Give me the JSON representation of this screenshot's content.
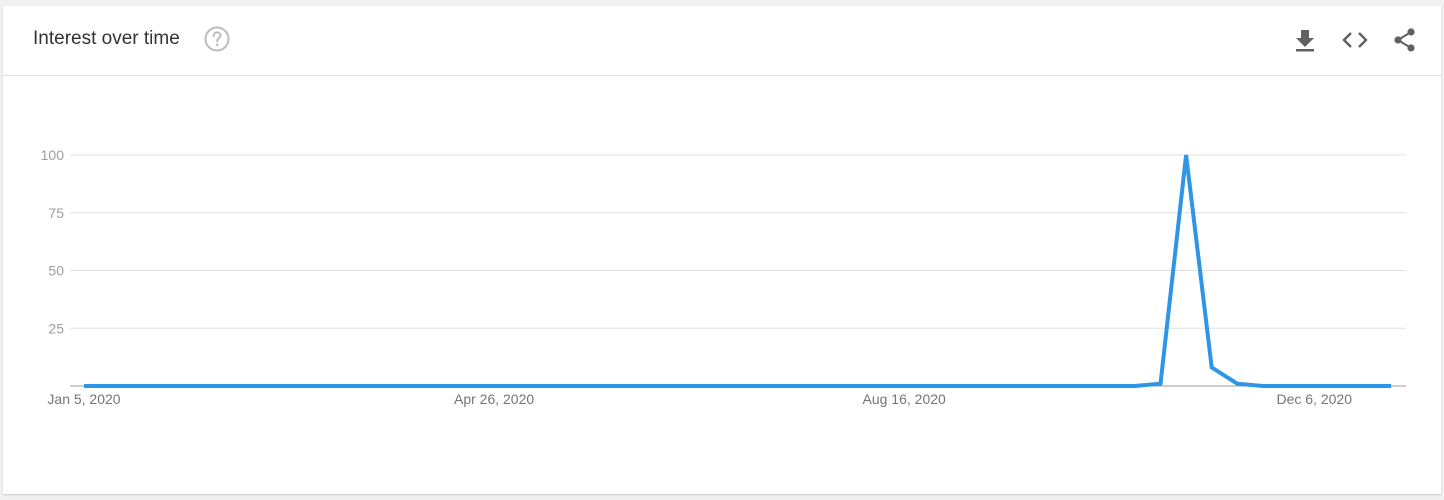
{
  "header": {
    "title": "Interest over time",
    "icons": [
      "help-icon",
      "download-icon",
      "embed-icon",
      "share-icon"
    ]
  },
  "colors": {
    "series": "#2f95e6",
    "grid": "#e0e0e0",
    "axis": "#9e9e9e"
  },
  "chart_data": {
    "type": "line",
    "title": "",
    "xlabel": "",
    "ylabel": "",
    "ylim": [
      0,
      100
    ],
    "yticks": [
      25,
      50,
      75,
      100
    ],
    "x_tick_labels": [
      "Jan 5, 2020",
      "Apr 26, 2020",
      "Aug 16, 2020",
      "Dec 6, 2020"
    ],
    "x_start": "2020-01-05",
    "x_interval": "week",
    "grid": true,
    "legend": "none",
    "series": [
      {
        "values": [
          0,
          0,
          0,
          0,
          0,
          0,
          0,
          0,
          0,
          0,
          0,
          0,
          0,
          0,
          0,
          0,
          0,
          0,
          0,
          0,
          0,
          0,
          0,
          0,
          0,
          0,
          0,
          0,
          0,
          0,
          0,
          0,
          0,
          0,
          0,
          0,
          0,
          0,
          0,
          0,
          0,
          0,
          1,
          100,
          8,
          1,
          0,
          0,
          0,
          0,
          0,
          0
        ]
      }
    ]
  }
}
